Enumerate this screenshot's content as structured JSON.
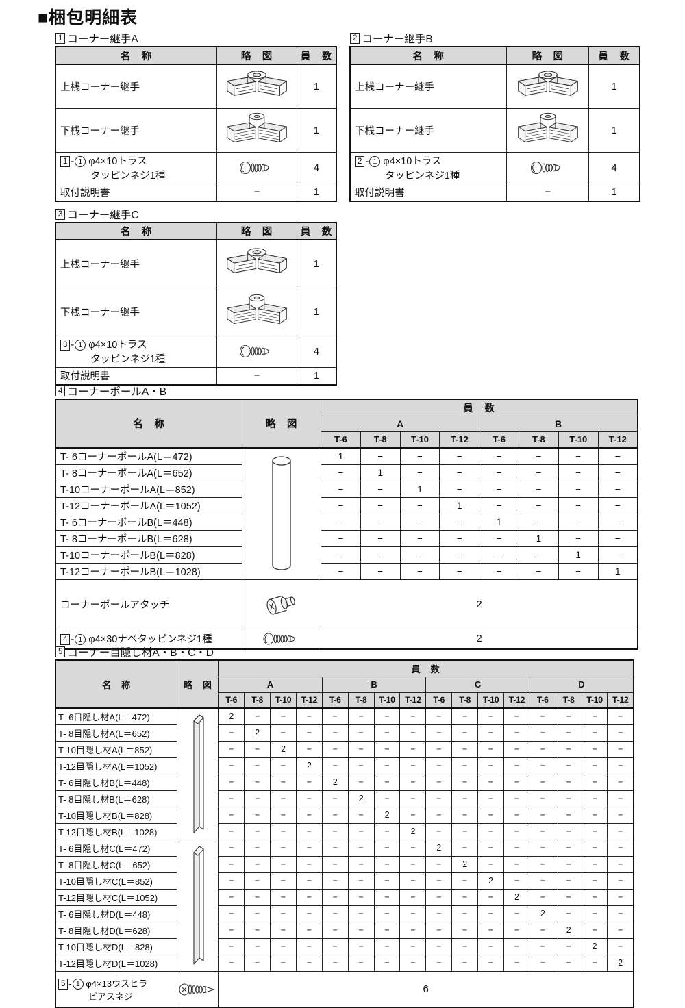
{
  "page_title": "■梱包明細表",
  "colors": {
    "header_bg": "#d9d9d9",
    "border": "#111111",
    "page_bg": "#ffffff"
  },
  "joint_tables": [
    {
      "caption_no": "1",
      "caption": "コーナー継手A",
      "headers": {
        "name": "名　称",
        "sketch": "略　図",
        "qty": "員　数"
      },
      "rows": [
        {
          "name": "上桟コーナー継手",
          "icon": "corner-joint-upper",
          "qty": "1"
        },
        {
          "name": "下桟コーナー継手",
          "icon": "corner-joint-lower",
          "qty": "1"
        },
        {
          "box_no": "1",
          "sep": "-",
          "circle_no": "1",
          "name_line1": "φ4×10トラス",
          "name_line2": "タッピンネジ1種",
          "icon": "screw-truss",
          "qty": "4"
        },
        {
          "name": "取付説明書",
          "icon_text": "−",
          "qty": "1"
        }
      ]
    },
    {
      "caption_no": "2",
      "caption": "コーナー継手B",
      "headers": {
        "name": "名　称",
        "sketch": "略　図",
        "qty": "員　数"
      },
      "rows": [
        {
          "name": "上桟コーナー継手",
          "icon": "corner-joint-upper",
          "qty": "1"
        },
        {
          "name": "下桟コーナー継手",
          "icon": "corner-joint-lower",
          "qty": "1"
        },
        {
          "box_no": "2",
          "sep": "-",
          "circle_no": "1",
          "name_line1": "φ4×10トラス",
          "name_line2": "タッピンネジ1種",
          "icon": "screw-truss",
          "qty": "4"
        },
        {
          "name": "取付説明書",
          "icon_text": "−",
          "qty": "1"
        }
      ]
    },
    {
      "caption_no": "3",
      "caption": "コーナー継手C",
      "headers": {
        "name": "名　称",
        "sketch": "略　図",
        "qty": "員　数"
      },
      "rows": [
        {
          "name": "上桟コーナー継手",
          "icon": "corner-joint-upper",
          "qty": "1"
        },
        {
          "name": "下桟コーナー継手",
          "icon": "corner-joint-lower",
          "qty": "1"
        },
        {
          "box_no": "3",
          "sep": "-",
          "circle_no": "1",
          "name_line1": "φ4×10トラス",
          "name_line2": "タッピンネジ1種",
          "icon": "screw-truss",
          "qty": "4"
        },
        {
          "name": "取付説明書",
          "icon_text": "−",
          "qty": "1"
        }
      ]
    }
  ],
  "pole_table": {
    "caption_no": "4",
    "caption": "コーナーポールA・B",
    "headers": {
      "name": "名　称",
      "sketch": "略　図",
      "qty": "員　数"
    },
    "groups": [
      "A",
      "B"
    ],
    "sizes": [
      "T-6",
      "T-8",
      "T-10",
      "T-12"
    ],
    "rows": [
      {
        "name": "T- 6コーナーポールA(L＝472)",
        "values": [
          "1",
          "−",
          "−",
          "−",
          "−",
          "−",
          "−",
          "−"
        ]
      },
      {
        "name": "T- 8コーナーポールA(L＝652)",
        "values": [
          "−",
          "1",
          "−",
          "−",
          "−",
          "−",
          "−",
          "−"
        ]
      },
      {
        "name": "T-10コーナーポールA(L＝852)",
        "values": [
          "−",
          "−",
          "1",
          "−",
          "−",
          "−",
          "−",
          "−"
        ]
      },
      {
        "name": "T-12コーナーポールA(L＝1052)",
        "values": [
          "−",
          "−",
          "−",
          "1",
          "−",
          "−",
          "−",
          "−"
        ]
      },
      {
        "name": "T- 6コーナーポールB(L＝448)",
        "values": [
          "−",
          "−",
          "−",
          "−",
          "1",
          "−",
          "−",
          "−"
        ]
      },
      {
        "name": "T- 8コーナーポールB(L＝628)",
        "values": [
          "−",
          "−",
          "−",
          "−",
          "−",
          "1",
          "−",
          "−"
        ]
      },
      {
        "name": "T-10コーナーポールB(L＝828)",
        "values": [
          "−",
          "−",
          "−",
          "−",
          "−",
          "−",
          "1",
          "−"
        ]
      },
      {
        "name": "T-12コーナーポールB(L＝1028)",
        "values": [
          "−",
          "−",
          "−",
          "−",
          "−",
          "−",
          "−",
          "1"
        ]
      }
    ],
    "attach_row": {
      "name": "コーナーポールアタッチ",
      "icon": "pole-attach",
      "qty": "2"
    },
    "screw_row": {
      "box_no": "4",
      "sep": "-",
      "circle_no": "1",
      "name": "φ4×30ナベタッピンネジ1種",
      "icon": "screw-pan",
      "qty": "2"
    }
  },
  "cover_table": {
    "caption_no": "5",
    "caption": "コーナー目隠し材A・B・C・D",
    "headers": {
      "name": "名　称",
      "sketch": "略　図",
      "qty": "員　数"
    },
    "groups": [
      "A",
      "B",
      "C",
      "D"
    ],
    "sizes": [
      "T-6",
      "T-8",
      "T-10",
      "T-12"
    ],
    "rows": [
      {
        "name": "T- 6目隠し材A(L＝472)",
        "values": [
          "2",
          "−",
          "−",
          "−",
          "−",
          "−",
          "−",
          "−",
          "−",
          "−",
          "−",
          "−",
          "−",
          "−",
          "−",
          "−"
        ]
      },
      {
        "name": "T- 8目隠し材A(L＝652)",
        "values": [
          "−",
          "2",
          "−",
          "−",
          "−",
          "−",
          "−",
          "−",
          "−",
          "−",
          "−",
          "−",
          "−",
          "−",
          "−",
          "−"
        ]
      },
      {
        "name": "T-10目隠し材A(L＝852)",
        "values": [
          "−",
          "−",
          "2",
          "−",
          "−",
          "−",
          "−",
          "−",
          "−",
          "−",
          "−",
          "−",
          "−",
          "−",
          "−",
          "−"
        ]
      },
      {
        "name": "T-12目隠し材A(L＝1052)",
        "values": [
          "−",
          "−",
          "−",
          "2",
          "−",
          "−",
          "−",
          "−",
          "−",
          "−",
          "−",
          "−",
          "−",
          "−",
          "−",
          "−"
        ]
      },
      {
        "name": "T- 6目隠し材B(L＝448)",
        "values": [
          "−",
          "−",
          "−",
          "−",
          "2",
          "−",
          "−",
          "−",
          "−",
          "−",
          "−",
          "−",
          "−",
          "−",
          "−",
          "−"
        ]
      },
      {
        "name": "T- 8目隠し材B(L＝628)",
        "values": [
          "−",
          "−",
          "−",
          "−",
          "−",
          "2",
          "−",
          "−",
          "−",
          "−",
          "−",
          "−",
          "−",
          "−",
          "−",
          "−"
        ]
      },
      {
        "name": "T-10目隠し材B(L＝828)",
        "values": [
          "−",
          "−",
          "−",
          "−",
          "−",
          "−",
          "2",
          "−",
          "−",
          "−",
          "−",
          "−",
          "−",
          "−",
          "−",
          "−"
        ]
      },
      {
        "name": "T-12目隠し材B(L＝1028)",
        "values": [
          "−",
          "−",
          "−",
          "−",
          "−",
          "−",
          "−",
          "2",
          "−",
          "−",
          "−",
          "−",
          "−",
          "−",
          "−",
          "−"
        ]
      },
      {
        "name": "T- 6目隠し材C(L＝472)",
        "values": [
          "−",
          "−",
          "−",
          "−",
          "−",
          "−",
          "−",
          "−",
          "2",
          "−",
          "−",
          "−",
          "−",
          "−",
          "−",
          "−"
        ]
      },
      {
        "name": "T- 8目隠し材C(L＝652)",
        "values": [
          "−",
          "−",
          "−",
          "−",
          "−",
          "−",
          "−",
          "−",
          "−",
          "2",
          "−",
          "−",
          "−",
          "−",
          "−",
          "−"
        ]
      },
      {
        "name": "T-10目隠し材C(L＝852)",
        "values": [
          "−",
          "−",
          "−",
          "−",
          "−",
          "−",
          "−",
          "−",
          "−",
          "−",
          "2",
          "−",
          "−",
          "−",
          "−",
          "−"
        ]
      },
      {
        "name": "T-12目隠し材C(L＝1052)",
        "values": [
          "−",
          "−",
          "−",
          "−",
          "−",
          "−",
          "−",
          "−",
          "−",
          "−",
          "−",
          "2",
          "−",
          "−",
          "−",
          "−"
        ]
      },
      {
        "name": "T- 6目隠し材D(L＝448)",
        "values": [
          "−",
          "−",
          "−",
          "−",
          "−",
          "−",
          "−",
          "−",
          "−",
          "−",
          "−",
          "−",
          "2",
          "−",
          "−",
          "−"
        ]
      },
      {
        "name": "T- 8目隠し材D(L＝628)",
        "values": [
          "−",
          "−",
          "−",
          "−",
          "−",
          "−",
          "−",
          "−",
          "−",
          "−",
          "−",
          "−",
          "−",
          "2",
          "−",
          "−"
        ]
      },
      {
        "name": "T-10目隠し材D(L＝828)",
        "values": [
          "−",
          "−",
          "−",
          "−",
          "−",
          "−",
          "−",
          "−",
          "−",
          "−",
          "−",
          "−",
          "−",
          "−",
          "2",
          "−"
        ]
      },
      {
        "name": "T-12目隠し材D(L＝1028)",
        "values": [
          "−",
          "−",
          "−",
          "−",
          "−",
          "−",
          "−",
          "−",
          "−",
          "−",
          "−",
          "−",
          "−",
          "−",
          "−",
          "2"
        ]
      }
    ],
    "screw_row": {
      "box_no": "5",
      "sep": "-",
      "circle_no": "1",
      "name_line1": "φ4×13ウスヒラ",
      "name_line2": "ピアスネジ",
      "icon": "screw-pierce",
      "qty": "6"
    }
  }
}
